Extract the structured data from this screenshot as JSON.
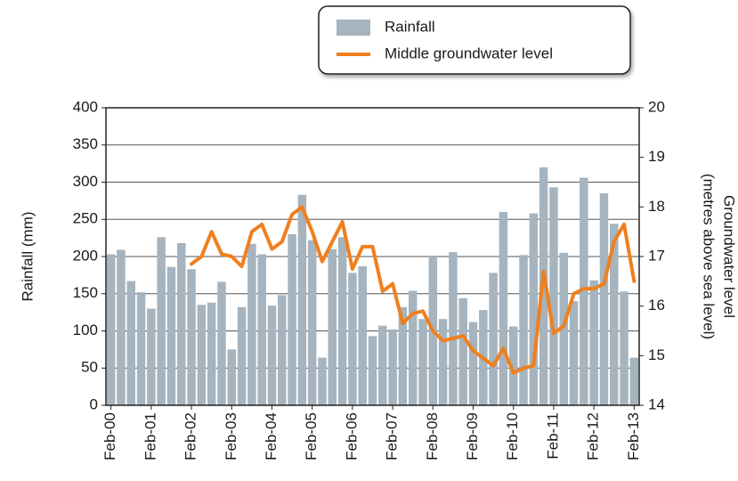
{
  "chart_data": {
    "type": "bar",
    "categories": [
      "Feb-00",
      null,
      null,
      null,
      "Feb-01",
      null,
      null,
      null,
      "Feb-02",
      null,
      null,
      null,
      "Feb-03",
      null,
      null,
      null,
      "Feb-04",
      null,
      null,
      null,
      "Feb-05",
      null,
      null,
      null,
      "Feb-06",
      null,
      null,
      null,
      "Feb-07",
      null,
      null,
      null,
      "Feb-08",
      null,
      null,
      null,
      "Feb-09",
      null,
      null,
      null,
      "Feb-10",
      null,
      null,
      null,
      "Feb-11",
      null,
      null,
      null,
      "Feb-12",
      null,
      null,
      null,
      "Feb-13"
    ],
    "series": [
      {
        "name": "Rainfall",
        "type": "bar",
        "color": "#a5b4bf",
        "values": [
          203,
          209,
          167,
          152,
          130,
          226,
          186,
          218,
          183,
          135,
          138,
          166,
          75,
          132,
          217,
          203,
          134,
          148,
          230,
          283,
          222,
          64,
          210,
          226,
          178,
          187,
          93,
          107,
          102,
          132,
          154,
          116,
          200,
          116,
          206,
          144,
          112,
          128,
          178,
          260,
          106,
          202,
          258,
          320,
          293,
          205,
          140,
          306,
          168,
          285,
          244,
          153,
          64
        ]
      },
      {
        "name": "Middle groundwater level",
        "type": "line",
        "axis": "y2",
        "color": "#f07f1e",
        "values": [
          null,
          null,
          null,
          null,
          null,
          null,
          null,
          null,
          16.85,
          17.0,
          17.5,
          17.05,
          17.0,
          16.8,
          17.5,
          17.65,
          17.15,
          17.3,
          17.85,
          18.0,
          17.5,
          16.9,
          17.3,
          17.7,
          16.75,
          17.2,
          17.2,
          16.3,
          16.45,
          15.65,
          15.85,
          15.9,
          15.5,
          15.3,
          15.35,
          15.4,
          15.1,
          14.95,
          14.8,
          15.15,
          14.65,
          14.75,
          14.8,
          16.7,
          15.45,
          15.6,
          16.25,
          16.35,
          16.35,
          16.45,
          17.3,
          17.65,
          16.5
        ]
      }
    ],
    "ylabel": "Rainfall (mm)",
    "y2label": [
      "Groundwater level",
      "(metres above sea level)"
    ],
    "ylim": [
      0,
      400
    ],
    "yticks": [
      0,
      50,
      100,
      150,
      200,
      250,
      300,
      350,
      400
    ],
    "y2lim": [
      14,
      20
    ],
    "y2ticks": [
      14,
      15,
      16,
      17,
      18,
      19,
      20
    ],
    "grid": true,
    "legend": "top-right"
  }
}
